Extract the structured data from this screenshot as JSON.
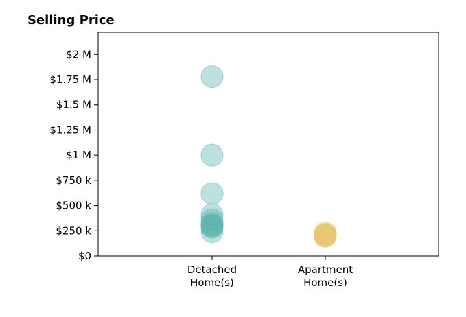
{
  "chart_data": {
    "type": "scatter",
    "title": "Selling Price",
    "xlabel": "",
    "ylabel": "",
    "categories": [
      "Detached\nHome(s)",
      "Apartment\nHome(s)"
    ],
    "y_ticks": [
      {
        "value": 0,
        "label": "$0"
      },
      {
        "value": 250000,
        "label": "$250 k"
      },
      {
        "value": 500000,
        "label": "$500 k"
      },
      {
        "value": 750000,
        "label": "$750 k"
      },
      {
        "value": 1000000,
        "label": "$1 M"
      },
      {
        "value": 1250000,
        "label": "$1.25 M"
      },
      {
        "value": 1500000,
        "label": "$1.5 M"
      },
      {
        "value": 1750000,
        "label": "$1.75 M"
      },
      {
        "value": 2000000,
        "label": "$2 M"
      }
    ],
    "ylim": [
      0,
      2220000
    ],
    "grid": false,
    "legend": "none",
    "series": [
      {
        "category": "Detached\nHome(s)",
        "color": "#5ab4ac",
        "values": [
          1780000,
          1000000,
          620000,
          410000,
          360000,
          320000,
          305000,
          295000,
          285000,
          240000
        ]
      },
      {
        "category": "Apartment\nHome(s)",
        "color": "#e9c46a",
        "values": [
          230000,
          215000,
          205000,
          200000,
          195000
        ]
      }
    ]
  }
}
